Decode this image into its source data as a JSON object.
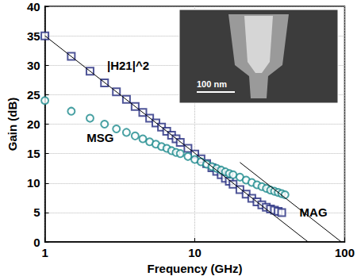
{
  "chart_data": {
    "type": "scatter",
    "x_label": "Frequency (GHz)",
    "y_label": "Gain (dB)",
    "log": "x",
    "grid": true,
    "xlim": [
      1,
      100
    ],
    "xticks": [
      1,
      10,
      100
    ],
    "ylim": [
      0,
      40
    ],
    "yticks": [
      0,
      5,
      10,
      15,
      20,
      25,
      30,
      35,
      40
    ],
    "series": [
      {
        "type": "scatter",
        "marker": "square",
        "color": "#232a7e",
        "x": [
          1,
          1.5,
          2,
          2.5,
          3,
          3.5,
          4,
          4.5,
          5,
          5.5,
          6,
          6.5,
          7,
          7.5,
          8,
          9,
          10,
          11,
          12,
          13,
          14,
          15,
          16,
          17,
          18,
          20,
          22,
          24,
          26,
          28,
          30,
          32,
          34,
          36,
          38
        ],
        "values": [
          35,
          31.5,
          29,
          27,
          25.5,
          24.2,
          23,
          22,
          21,
          20.2,
          19.5,
          18.8,
          18.1,
          17.5,
          16.9,
          15.9,
          14.9,
          14.1,
          13.3,
          12.6,
          12.0,
          11.4,
          10.8,
          10.3,
          9.8,
          8.9,
          8.1,
          7.4,
          6.8,
          6.3,
          5.9,
          5.6,
          5.4,
          5.2,
          5.0
        ]
      },
      {
        "type": "scatter",
        "marker": "circle",
        "color": "#1b8a8c",
        "x": [
          1,
          1.5,
          2,
          2.5,
          3,
          3.5,
          4,
          4.5,
          5,
          5.5,
          6,
          6.5,
          7,
          7.5,
          8,
          9,
          10,
          11,
          12,
          13,
          14,
          15,
          16,
          17,
          18,
          20,
          22,
          24,
          26,
          28,
          30,
          32,
          34,
          36,
          38,
          40
        ],
        "values": [
          24,
          22.2,
          21,
          20,
          19.2,
          18.6,
          18,
          17.5,
          17,
          16.6,
          16.2,
          15.9,
          15.5,
          15.2,
          15,
          14.5,
          14,
          13.6,
          13.2,
          12.8,
          12.5,
          12.2,
          11.9,
          11.6,
          11.4,
          11,
          10.5,
          10.1,
          9.7,
          9.4,
          9.1,
          8.8,
          8.6,
          8.4,
          8.2,
          8.0
        ]
      },
      {
        "type": "line",
        "marker": "none",
        "line_style": "solid",
        "color": "#000000",
        "x": [
          1,
          57
        ],
        "values": [
          35,
          0
        ]
      },
      {
        "type": "line",
        "marker": "none",
        "line_style": "solid",
        "color": "#000000",
        "x": [
          20,
          95
        ],
        "values": [
          13.5,
          0
        ]
      }
    ],
    "annotations": [
      {
        "text": "|H21|^2",
        "x": 2.6,
        "y": 30
      },
      {
        "text": "MSG",
        "x": 1.9,
        "y": 17.7
      },
      {
        "text": "MAG",
        "x": 50,
        "y": 5
      }
    ],
    "inset": {
      "scale_label": "100 nm"
    }
  }
}
